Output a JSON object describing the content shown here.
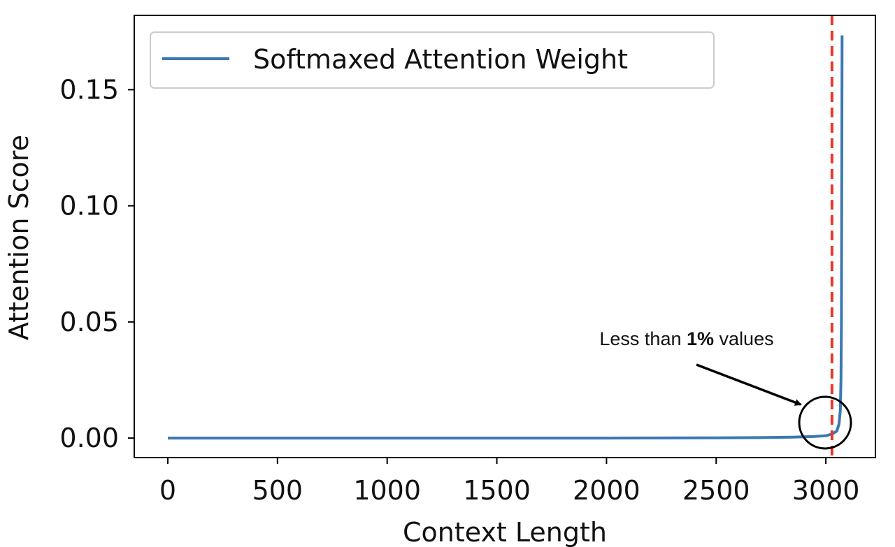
{
  "chart_data": {
    "type": "line",
    "xlabel": "Context Length",
    "ylabel": "Attention Score",
    "x": [
      0,
      500,
      1000,
      1500,
      2000,
      2500,
      2700,
      2850,
      2950,
      3000,
      3030,
      3050,
      3060,
      3066,
      3069,
      3071,
      3072,
      3073,
      3074
    ],
    "series": [
      {
        "name": "Softmaxed Attention Weight",
        "color": "#3b78b4",
        "values": [
          0,
          0,
          0,
          0,
          0,
          0.0001,
          0.0002,
          0.0004,
          0.0007,
          0.001,
          0.0018,
          0.003,
          0.006,
          0.012,
          0.025,
          0.05,
          0.09,
          0.13,
          0.1734
        ]
      }
    ],
    "xlim": [
      -153,
      3226
    ],
    "ylim": [
      -0.0084,
      0.182
    ],
    "xticks": [
      0,
      500,
      1000,
      1500,
      2000,
      2500,
      3000
    ],
    "yticks": [
      {
        "value": 0,
        "label": "0.00"
      },
      {
        "value": 0.05,
        "label": "0.05"
      },
      {
        "value": 0.1,
        "label": "0.10"
      },
      {
        "value": 0.15,
        "label": "0.15"
      }
    ],
    "threshold_x": 3028,
    "threshold_color": "#e8392a",
    "annotation": [
      "Less than",
      "1%",
      "values"
    ],
    "legend": "upper left",
    "grid": false
  }
}
